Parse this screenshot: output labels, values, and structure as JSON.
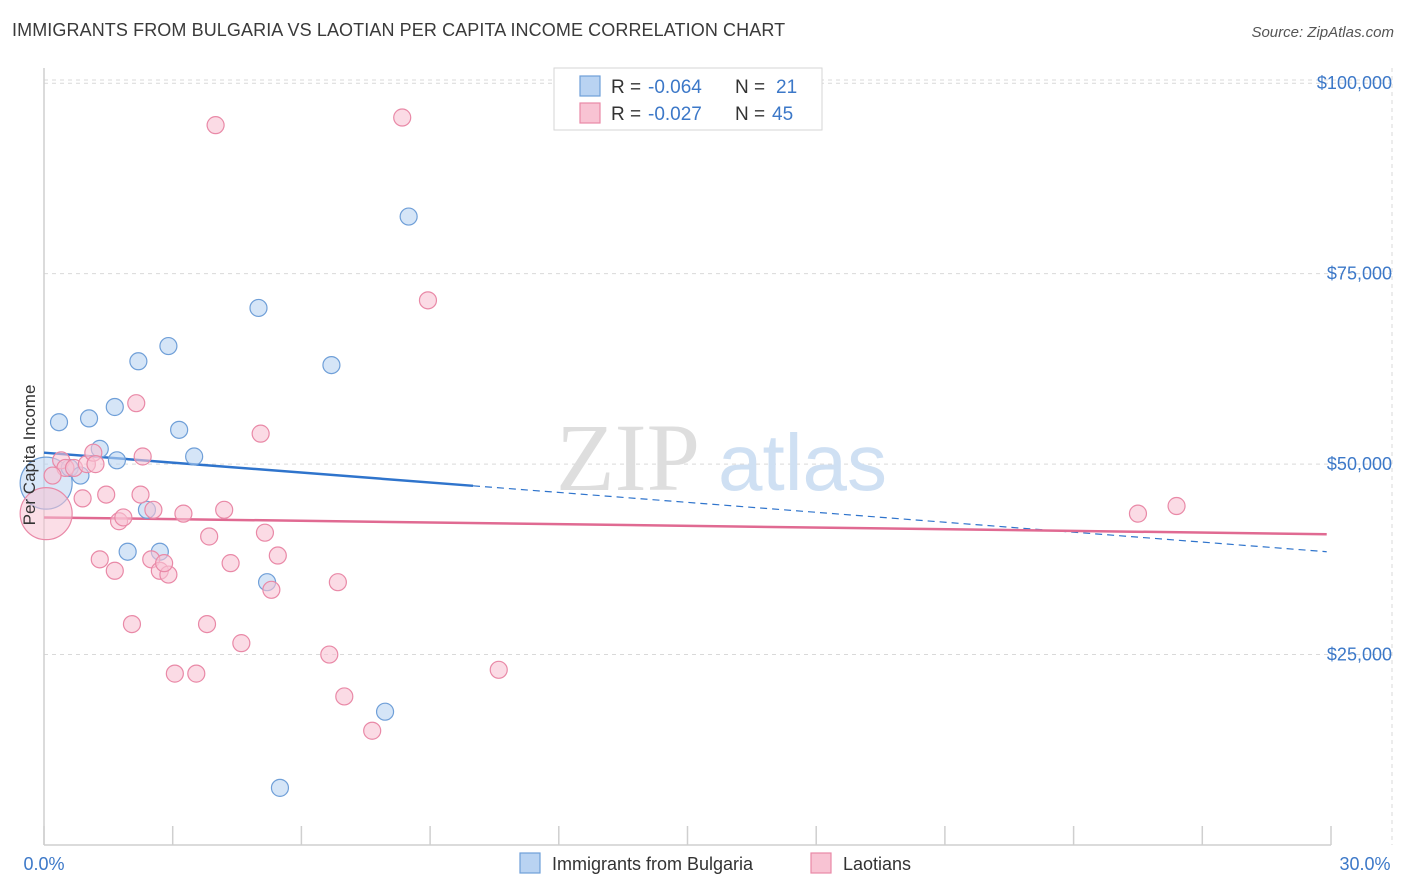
{
  "title": "IMMIGRANTS FROM BULGARIA VS LAOTIAN PER CAPITA INCOME CORRELATION CHART",
  "source": "Source: ZipAtlas.com",
  "watermark": {
    "zip": "ZIP",
    "atlas": "atlas"
  },
  "colors": {
    "blue_fill": "#b9d3f2",
    "blue_stroke": "#6f9fd8",
    "blue_line": "#2f74cc",
    "pink_fill": "#f8c3d3",
    "pink_stroke": "#e989a7",
    "pink_line": "#e06a92",
    "grid": "#d9d9d9",
    "label": "#3c78c8"
  },
  "chart_data": {
    "type": "scatter",
    "xlabel": "",
    "ylabel": "Per Capita Income",
    "xlim": [
      0,
      30
    ],
    "ylim": [
      0,
      102000
    ],
    "x_tick_labels": [
      "0.0%",
      "30.0%"
    ],
    "y_ticks": [
      25000,
      50000,
      75000,
      100000
    ],
    "y_tick_labels": [
      "$25,000",
      "$50,000",
      "$75,000",
      "$100,000"
    ],
    "legend": [
      {
        "series": "Immigrants from Bulgaria",
        "r_label": "R =",
        "r_value": "-0.064",
        "n_label": "N =",
        "n_value": "21"
      },
      {
        "series": "Laotians",
        "r_label": "R =",
        "r_value": "-0.027",
        "n_label": "N =",
        "n_value": "45"
      }
    ],
    "series": [
      {
        "name": "Immigrants from Bulgaria",
        "color": "blue",
        "trend": {
          "x0": 0,
          "y0": 51500,
          "x_solid_end": 10,
          "x1": 29.9,
          "y1": 38500
        },
        "points": [
          {
            "x": 0.05,
            "y": 47500,
            "big": true
          },
          {
            "x": 0.35,
            "y": 55500
          },
          {
            "x": 0.6,
            "y": 49500
          },
          {
            "x": 0.85,
            "y": 48500
          },
          {
            "x": 1.05,
            "y": 56000
          },
          {
            "x": 1.3,
            "y": 52000
          },
          {
            "x": 1.65,
            "y": 57500
          },
          {
            "x": 1.7,
            "y": 50500
          },
          {
            "x": 1.95,
            "y": 38500
          },
          {
            "x": 2.2,
            "y": 63500
          },
          {
            "x": 2.4,
            "y": 44000
          },
          {
            "x": 2.7,
            "y": 38500
          },
          {
            "x": 2.9,
            "y": 65500
          },
          {
            "x": 3.15,
            "y": 54500
          },
          {
            "x": 3.5,
            "y": 51000
          },
          {
            "x": 5.0,
            "y": 70500
          },
          {
            "x": 5.2,
            "y": 34500
          },
          {
            "x": 5.5,
            "y": 7500
          },
          {
            "x": 6.7,
            "y": 63000
          },
          {
            "x": 7.95,
            "y": 17500
          },
          {
            "x": 8.5,
            "y": 82500
          }
        ]
      },
      {
        "name": "Laotians",
        "color": "pink",
        "trend": {
          "x0": 0,
          "y0": 43000,
          "x1": 29.9,
          "y1": 40800
        },
        "points": [
          {
            "x": 0.05,
            "y": 43500,
            "big": true
          },
          {
            "x": 0.4,
            "y": 50500
          },
          {
            "x": 0.5,
            "y": 49500
          },
          {
            "x": 0.7,
            "y": 49500
          },
          {
            "x": 0.9,
            "y": 45500
          },
          {
            "x": 1.0,
            "y": 50000
          },
          {
            "x": 1.15,
            "y": 51500
          },
          {
            "x": 1.3,
            "y": 37500
          },
          {
            "x": 1.45,
            "y": 46000
          },
          {
            "x": 1.65,
            "y": 36000
          },
          {
            "x": 1.75,
            "y": 42500
          },
          {
            "x": 1.85,
            "y": 43000
          },
          {
            "x": 2.05,
            "y": 29000
          },
          {
            "x": 2.15,
            "y": 58000
          },
          {
            "x": 2.25,
            "y": 46000
          },
          {
            "x": 2.3,
            "y": 51000
          },
          {
            "x": 2.5,
            "y": 37500
          },
          {
            "x": 2.55,
            "y": 44000
          },
          {
            "x": 2.7,
            "y": 36000
          },
          {
            "x": 2.9,
            "y": 35500
          },
          {
            "x": 3.05,
            "y": 22500
          },
          {
            "x": 3.25,
            "y": 43500
          },
          {
            "x": 3.55,
            "y": 22500
          },
          {
            "x": 3.8,
            "y": 29000
          },
          {
            "x": 3.85,
            "y": 40500
          },
          {
            "x": 4.0,
            "y": 94500
          },
          {
            "x": 4.2,
            "y": 44000
          },
          {
            "x": 4.35,
            "y": 37000
          },
          {
            "x": 4.6,
            "y": 26500
          },
          {
            "x": 5.05,
            "y": 54000
          },
          {
            "x": 5.15,
            "y": 41000
          },
          {
            "x": 5.3,
            "y": 33500
          },
          {
            "x": 5.45,
            "y": 38000
          },
          {
            "x": 6.65,
            "y": 25000
          },
          {
            "x": 6.85,
            "y": 34500
          },
          {
            "x": 7.0,
            "y": 19500
          },
          {
            "x": 7.65,
            "y": 15000
          },
          {
            "x": 8.35,
            "y": 95500
          },
          {
            "x": 8.95,
            "y": 71500
          },
          {
            "x": 10.6,
            "y": 23000
          },
          {
            "x": 25.5,
            "y": 43500
          },
          {
            "x": 26.4,
            "y": 44500
          },
          {
            "x": 1.2,
            "y": 50000
          },
          {
            "x": 2.8,
            "y": 37000
          },
          {
            "x": 0.2,
            "y": 48500
          }
        ]
      }
    ]
  }
}
